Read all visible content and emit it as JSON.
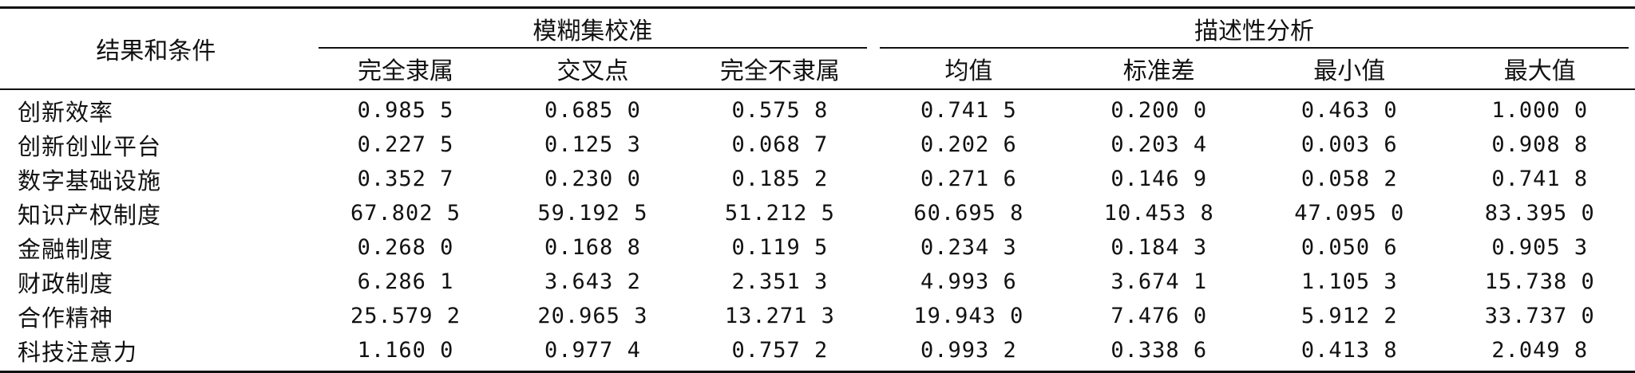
{
  "table": {
    "corner_header": "结果和条件",
    "groups": [
      {
        "label": "模糊集校准",
        "columns": [
          "完全隶属",
          "交叉点",
          "完全不隶属"
        ]
      },
      {
        "label": "描述性分析",
        "columns": [
          "均值",
          "标准差",
          "最小值",
          "最大值"
        ]
      }
    ],
    "rows": [
      {
        "label": "创新效率",
        "values": [
          "0.985 5",
          "0.685 0",
          "0.575 8",
          "0.741 5",
          "0.200 0",
          "0.463 0",
          "1.000 0"
        ]
      },
      {
        "label": "创新创业平台",
        "values": [
          "0.227 5",
          "0.125 3",
          "0.068 7",
          "0.202 6",
          "0.203 4",
          "0.003 6",
          "0.908 8"
        ]
      },
      {
        "label": "数字基础设施",
        "values": [
          "0.352 7",
          "0.230 0",
          "0.185 2",
          "0.271 6",
          "0.146 9",
          "0.058 2",
          "0.741 8"
        ]
      },
      {
        "label": "知识产权制度",
        "values": [
          "67.802 5",
          "59.192 5",
          "51.212 5",
          "60.695 8",
          "10.453 8",
          "47.095 0",
          "83.395 0"
        ]
      },
      {
        "label": "金融制度",
        "values": [
          "0.268 0",
          "0.168 8",
          "0.119 5",
          "0.234 3",
          "0.184 3",
          "0.050 6",
          "0.905 3"
        ]
      },
      {
        "label": "财政制度",
        "values": [
          "6.286 1",
          "3.643 2",
          "2.351 3",
          "4.993 6",
          "3.674 1",
          "1.105 3",
          "15.738 0"
        ]
      },
      {
        "label": "合作精神",
        "values": [
          "25.579 2",
          "20.965 3",
          "13.271 3",
          "19.943 0",
          "7.476 0",
          "5.912 2",
          "33.737 0"
        ]
      },
      {
        "label": "科技注意力",
        "values": [
          "1.160 0",
          "0.977 4",
          "0.757 2",
          "0.993 2",
          "0.338 6",
          "0.413 8",
          "2.049 8"
        ]
      }
    ]
  }
}
